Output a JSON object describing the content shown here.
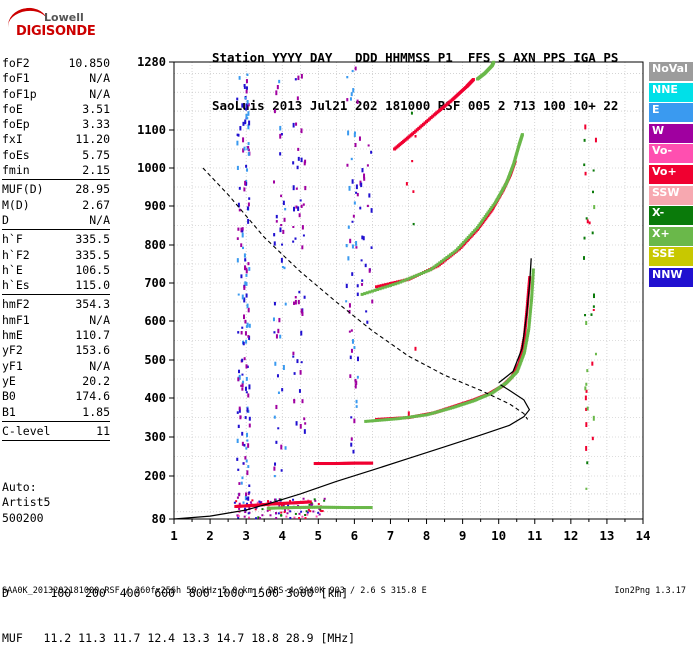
{
  "logo": {
    "line1": "Lowell",
    "line2": "DIGISONDE"
  },
  "header": {
    "line1": "Station YYYY DAY   DDD HHMMSS P1  FFS S AXN PPS IGA PS",
    "line2": "SaoLuis 2013 Jul21 202 181000 RSF 005 2 713 100 10+ 22"
  },
  "params": [
    {
      "k": "foF2",
      "v": "10.850"
    },
    {
      "k": "foF1",
      "v": "N/A"
    },
    {
      "k": "foF1p",
      "v": "N/A"
    },
    {
      "k": "foE",
      "v": "3.51"
    },
    {
      "k": "foEp",
      "v": "3.33"
    },
    {
      "k": "fxI",
      "v": "11.20"
    },
    {
      "k": "foEs",
      "v": "5.75"
    },
    {
      "k": "fmin",
      "v": "2.15"
    },
    {
      "sep": true
    },
    {
      "k": "MUF(D)",
      "v": "28.95"
    },
    {
      "k": "M(D)",
      "v": "2.67"
    },
    {
      "k": "D",
      "v": "N/A"
    },
    {
      "sep": true
    },
    {
      "k": "h`F",
      "v": "335.5"
    },
    {
      "k": "h`F2",
      "v": "335.5"
    },
    {
      "k": "h`E",
      "v": "106.5"
    },
    {
      "k": "h`Es",
      "v": "115.0"
    },
    {
      "sep": true
    },
    {
      "k": "hmF2",
      "v": "354.3"
    },
    {
      "k": "hmF1",
      "v": "N/A"
    },
    {
      "k": "hmE",
      "v": "110.7"
    },
    {
      "k": "yF2",
      "v": "153.6"
    },
    {
      "k": "yF1",
      "v": "N/A"
    },
    {
      "k": "yE",
      "v": "20.2"
    },
    {
      "k": "B0",
      "v": "174.6"
    },
    {
      "k": "B1",
      "v": "1.85"
    },
    {
      "sep": true
    },
    {
      "k": "C-level",
      "v": "11"
    },
    {
      "sep": true
    }
  ],
  "notes": [
    "Auto:",
    "Artist5",
    "500200"
  ],
  "legend": [
    {
      "label": "NoVal",
      "color": "#9c9c9c"
    },
    {
      "label": "NNE",
      "color": "#00e0e8"
    },
    {
      "label": "E",
      "color": "#3a9af0"
    },
    {
      "label": "W",
      "color": "#a000a0"
    },
    {
      "label": "Vo-",
      "color": "#ff4fb0"
    },
    {
      "label": "Vo+",
      "color": "#f00030"
    },
    {
      "label": "SSW",
      "color": "#f7a8b0"
    },
    {
      "label": "X-",
      "color": "#0a7a0a"
    },
    {
      "label": "X+",
      "color": "#6ab84a"
    },
    {
      "label": "SSE",
      "color": "#c8c800"
    },
    {
      "label": "NNW",
      "color": "#2010d0"
    }
  ],
  "muf_table": {
    "line1": "D      100  200  400  600  800 1000 1500 3000 [km]",
    "line2": "MUF   11.2 11.3 11.7 12.4 13.3 14.7 18.8 28.9 [MHz]"
  },
  "footer": "SAA0K_2013202181000.RSF / 260fx256h 50 kHz 5.0 km / DPS-4 SAA0K 903 / 2.6 S 315.8 E",
  "version": "Ion2Png 1.3.17",
  "chart_data": {
    "type": "scatter",
    "x_ticks": [
      1,
      2,
      3,
      4,
      5,
      6,
      7,
      8,
      9,
      10,
      11,
      12,
      13,
      14
    ],
    "y_ticks": [
      80,
      200,
      300,
      400,
      500,
      600,
      700,
      800,
      900,
      1000,
      1100,
      1280
    ],
    "xlim": [
      1,
      14
    ],
    "ylim": [
      80,
      1280
    ],
    "grid": true,
    "traces": [
      {
        "color": "#f00030",
        "points": [
          [
            6.6,
            345
          ],
          [
            7.5,
            350
          ],
          [
            8.2,
            362
          ],
          [
            8.8,
            380
          ],
          [
            9.3,
            395
          ],
          [
            9.7,
            410
          ],
          [
            10.1,
            432
          ],
          [
            10.35,
            455
          ],
          [
            10.55,
            490
          ],
          [
            10.7,
            560
          ],
          [
            10.78,
            640
          ],
          [
            10.85,
            720
          ]
        ]
      },
      {
        "color": "#6ab84a",
        "points": [
          [
            6.3,
            340
          ],
          [
            7.2,
            347
          ],
          [
            8.0,
            357
          ],
          [
            8.7,
            375
          ],
          [
            9.3,
            393
          ],
          [
            9.8,
            413
          ],
          [
            10.2,
            440
          ],
          [
            10.5,
            470
          ],
          [
            10.7,
            520
          ],
          [
            10.82,
            580
          ],
          [
            10.9,
            660
          ],
          [
            10.95,
            740
          ]
        ]
      },
      {
        "color": "#f00030",
        "points": [
          [
            6.6,
            690
          ],
          [
            7.5,
            710
          ],
          [
            8.3,
            745
          ],
          [
            8.9,
            790
          ],
          [
            9.4,
            840
          ],
          [
            9.8,
            890
          ],
          [
            10.1,
            940
          ],
          [
            10.3,
            980
          ],
          [
            10.45,
            1020
          ]
        ]
      },
      {
        "color": "#6ab84a",
        "points": [
          [
            6.2,
            670
          ],
          [
            7.2,
            700
          ],
          [
            8.1,
            735
          ],
          [
            8.8,
            785
          ],
          [
            9.4,
            845
          ],
          [
            9.9,
            910
          ],
          [
            10.2,
            960
          ],
          [
            10.4,
            1010
          ],
          [
            10.55,
            1060
          ],
          [
            10.65,
            1090
          ]
        ]
      },
      {
        "color": "#f00030",
        "points": [
          [
            7.1,
            1050
          ],
          [
            7.6,
            1090
          ],
          [
            8.2,
            1140
          ],
          [
            8.7,
            1180
          ],
          [
            9.1,
            1215
          ],
          [
            9.3,
            1235
          ]
        ]
      },
      {
        "color": "#6ab84a",
        "points": [
          [
            9.4,
            1235
          ],
          [
            9.6,
            1250
          ],
          [
            9.8,
            1270
          ],
          [
            9.85,
            1280
          ]
        ]
      },
      {
        "color": "#f00030",
        "points": [
          [
            2.7,
            115
          ],
          [
            3.2,
            118
          ],
          [
            3.7,
            122
          ],
          [
            4.3,
            125
          ],
          [
            4.8,
            128
          ]
        ]
      },
      {
        "color": "#6ab84a",
        "points": [
          [
            3.6,
            110
          ],
          [
            4.3,
            112
          ],
          [
            5.0,
            113
          ],
          [
            5.8,
            112
          ],
          [
            6.5,
            112
          ]
        ]
      },
      {
        "color": "#f00030",
        "points": [
          [
            4.9,
            232
          ],
          [
            5.5,
            232
          ],
          [
            6.0,
            233
          ],
          [
            6.5,
            233
          ]
        ]
      }
    ],
    "profile_solid": [
      [
        1.0,
        80
      ],
      [
        2.0,
        88
      ],
      [
        3.0,
        105
      ],
      [
        3.6,
        122
      ],
      [
        4.5,
        150
      ],
      [
        5.5,
        185
      ],
      [
        6.5,
        215
      ],
      [
        7.5,
        245
      ],
      [
        8.5,
        275
      ],
      [
        9.5,
        305
      ],
      [
        10.3,
        330
      ],
      [
        10.7,
        352
      ],
      [
        10.85,
        370
      ],
      [
        10.7,
        395
      ],
      [
        10.3,
        420
      ],
      [
        10.05,
        435
      ]
    ],
    "profile_dashed": [
      [
        1.8,
        1000
      ],
      [
        2.5,
        930
      ],
      [
        3.5,
        820
      ],
      [
        4.5,
        730
      ],
      [
        5.5,
        650
      ],
      [
        6.5,
        575
      ],
      [
        7.5,
        510
      ],
      [
        8.5,
        460
      ],
      [
        9.5,
        420
      ],
      [
        10.3,
        385
      ],
      [
        10.7,
        360
      ],
      [
        10.8,
        345
      ]
    ]
  }
}
